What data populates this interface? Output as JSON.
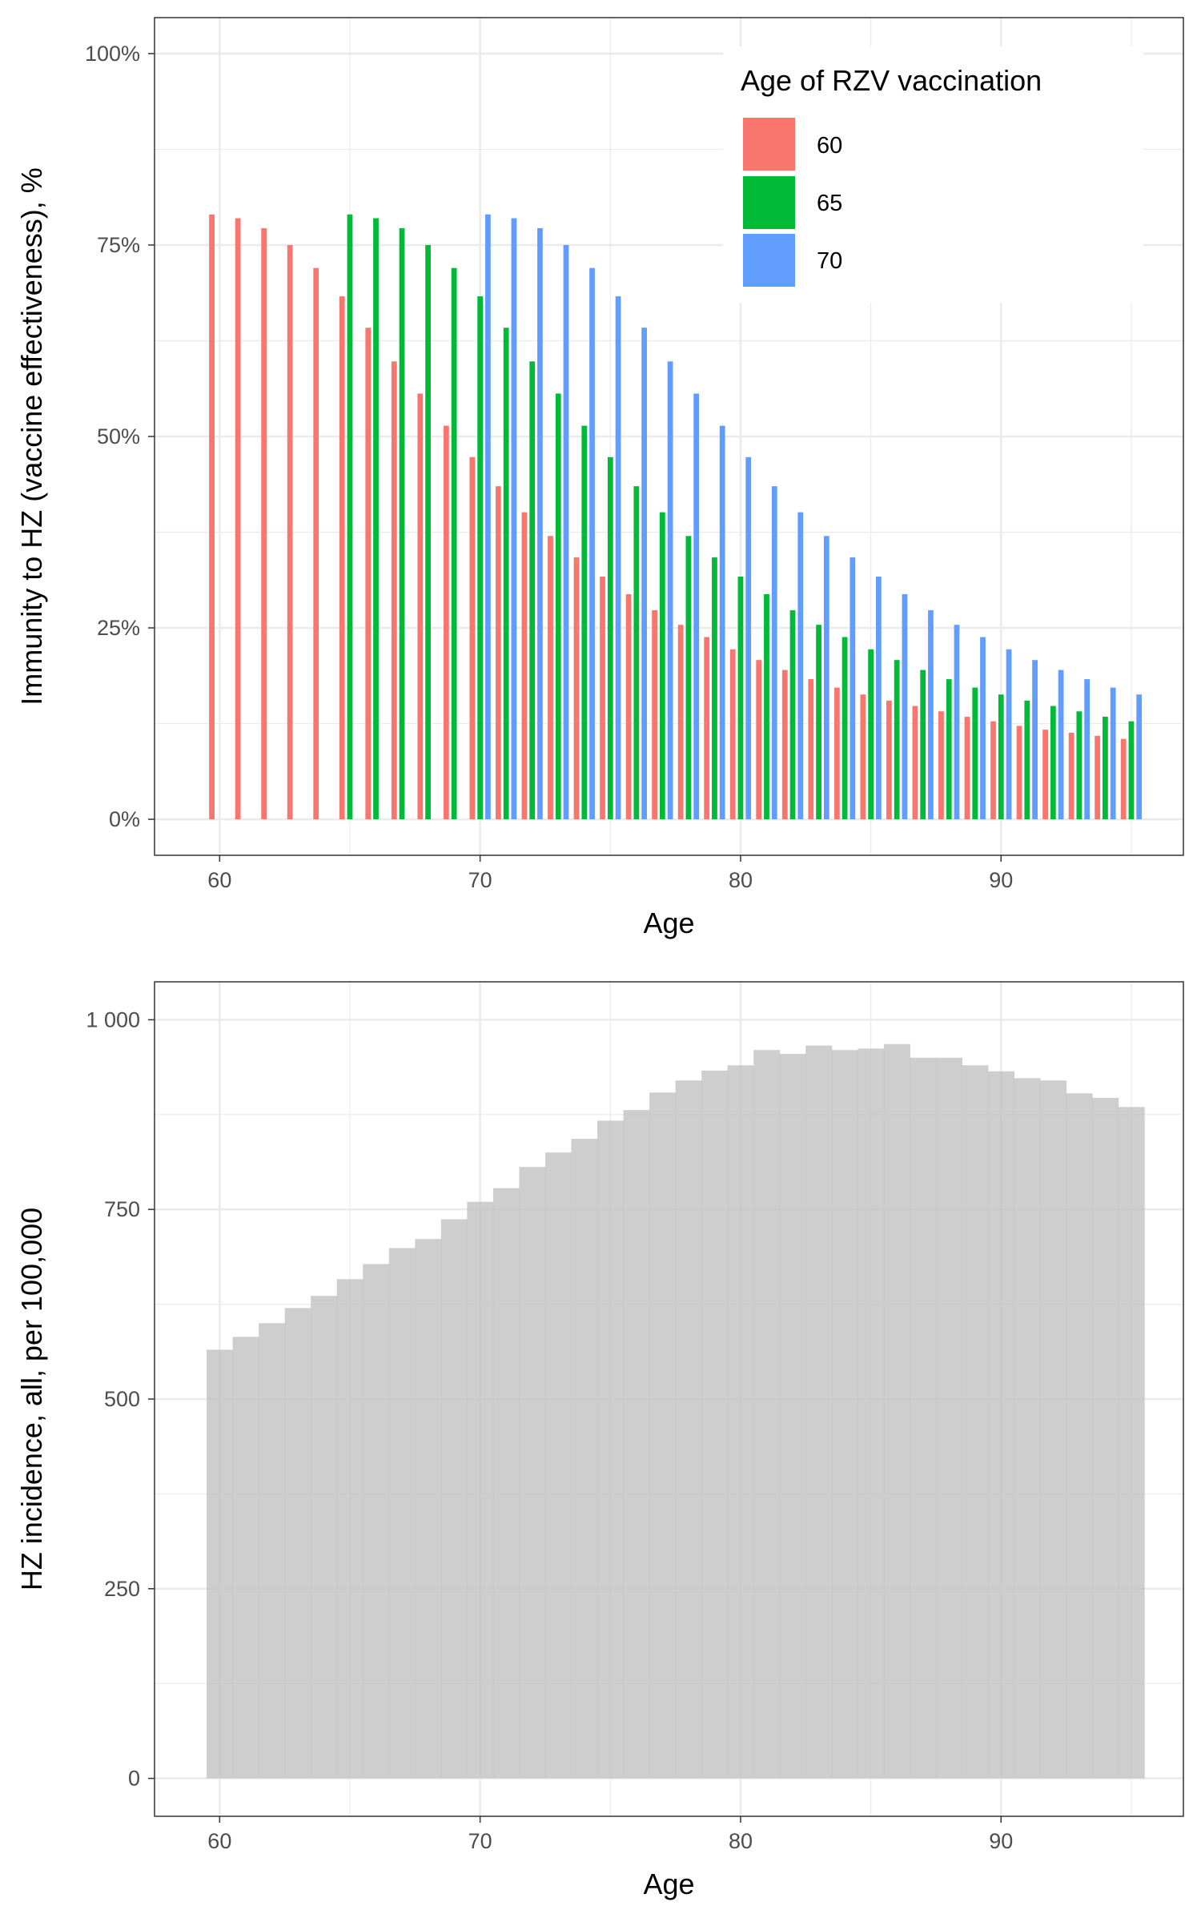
{
  "chart_data": [
    {
      "type": "bar",
      "xlabel": "Age",
      "ylabel": "Immunity to HZ (vaccine effectiveness), %",
      "xlim": [
        57.5,
        97
      ],
      "ylim": [
        -0.047,
        1.047
      ],
      "xticks": [
        "60",
        "70",
        "80",
        "90"
      ],
      "yticks": [
        "0%",
        "25%",
        "50%",
        "75%",
        "100%"
      ],
      "ytick_values": [
        0,
        0.25,
        0.5,
        0.75,
        1.0
      ],
      "grid": true,
      "legend": {
        "title": "Age of RZV vaccination",
        "position": "top-right"
      },
      "series": [
        {
          "name": "60",
          "color": "#F8766D",
          "x": [
            60,
            61,
            62,
            63,
            64,
            65,
            66,
            67,
            68,
            69,
            70,
            71,
            72,
            73,
            74,
            75,
            76,
            77,
            78,
            79,
            80,
            81,
            82,
            83,
            84,
            85,
            86,
            87,
            88,
            89,
            90,
            91,
            92,
            93,
            94,
            95
          ],
          "values": [
            0.79,
            0.785,
            0.772,
            0.75,
            0.72,
            0.683,
            0.642,
            0.598,
            0.556,
            0.514,
            0.473,
            0.435,
            0.401,
            0.37,
            0.342,
            0.317,
            0.294,
            0.273,
            0.254,
            0.238,
            0.222,
            0.208,
            0.195,
            0.183,
            0.172,
            0.163,
            0.155,
            0.148,
            0.141,
            0.134,
            0.128,
            0.122,
            0.117,
            0.113,
            0.109,
            0.105
          ]
        },
        {
          "name": "65",
          "color": "#00BA38",
          "x": [
            65,
            66,
            67,
            68,
            69,
            70,
            71,
            72,
            73,
            74,
            75,
            76,
            77,
            78,
            79,
            80,
            81,
            82,
            83,
            84,
            85,
            86,
            87,
            88,
            89,
            90,
            91,
            92,
            93,
            94,
            95
          ],
          "values": [
            0.79,
            0.785,
            0.772,
            0.75,
            0.72,
            0.683,
            0.642,
            0.598,
            0.556,
            0.514,
            0.473,
            0.435,
            0.401,
            0.37,
            0.342,
            0.317,
            0.294,
            0.273,
            0.254,
            0.238,
            0.222,
            0.208,
            0.195,
            0.183,
            0.172,
            0.163,
            0.155,
            0.148,
            0.141,
            0.134,
            0.128
          ]
        },
        {
          "name": "70",
          "color": "#619CFF",
          "x": [
            70,
            71,
            72,
            73,
            74,
            75,
            76,
            77,
            78,
            79,
            80,
            81,
            82,
            83,
            84,
            85,
            86,
            87,
            88,
            89,
            90,
            91,
            92,
            93,
            94,
            95
          ],
          "values": [
            0.79,
            0.785,
            0.772,
            0.75,
            0.72,
            0.683,
            0.642,
            0.598,
            0.556,
            0.514,
            0.473,
            0.435,
            0.401,
            0.37,
            0.342,
            0.317,
            0.294,
            0.273,
            0.254,
            0.238,
            0.222,
            0.208,
            0.195,
            0.183,
            0.172,
            0.163
          ]
        }
      ]
    },
    {
      "type": "bar",
      "xlabel": "Age",
      "ylabel": "HZ incidence, all, per 100,000",
      "xlim": [
        57.5,
        97
      ],
      "ylim": [
        -50,
        1050
      ],
      "xticks": [
        "60",
        "70",
        "80",
        "90"
      ],
      "yticks": [
        "0",
        "250",
        "500",
        "750",
        "1 000"
      ],
      "ytick_values": [
        0,
        250,
        500,
        750,
        1000
      ],
      "grid": true,
      "series": [
        {
          "color": "#BEBEBE",
          "x": [
            60,
            61,
            62,
            63,
            64,
            65,
            66,
            67,
            68,
            69,
            70,
            71,
            72,
            73,
            74,
            75,
            76,
            77,
            78,
            79,
            80,
            81,
            82,
            83,
            84,
            85,
            86,
            87,
            88,
            89,
            90,
            91,
            92,
            93,
            94,
            95
          ],
          "values": [
            565,
            582,
            600,
            620,
            636,
            658,
            678,
            699,
            711,
            737,
            760,
            778,
            806,
            825,
            843,
            867,
            881,
            904,
            920,
            933,
            940,
            960,
            955,
            966,
            960,
            962,
            968,
            950,
            950,
            940,
            932,
            923,
            920,
            903,
            897,
            885
          ]
        }
      ]
    }
  ]
}
